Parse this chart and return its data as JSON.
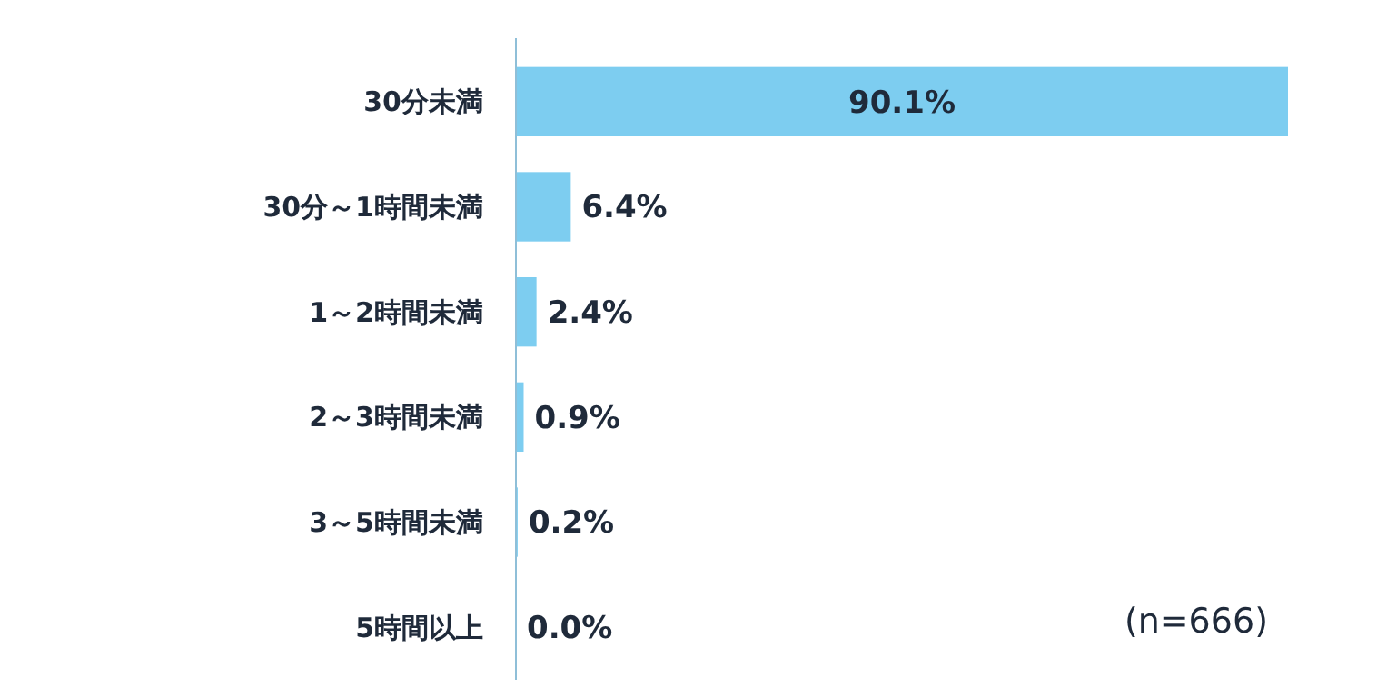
{
  "chart_data": {
    "type": "bar",
    "orientation": "horizontal",
    "categories": [
      "30分未満",
      "30分～1時間未満",
      "1～2時間未満",
      "2～3時間未満",
      "3～5時間未満",
      "5時間以上"
    ],
    "values": [
      90.1,
      6.4,
      2.4,
      0.9,
      0.2,
      0.0
    ],
    "value_labels": [
      "90.1%",
      "6.4%",
      "2.4%",
      "0.9%",
      "0.2%",
      "0.0%"
    ],
    "color": "#7dcdf0",
    "annotations": [
      "(n=666)"
    ]
  }
}
